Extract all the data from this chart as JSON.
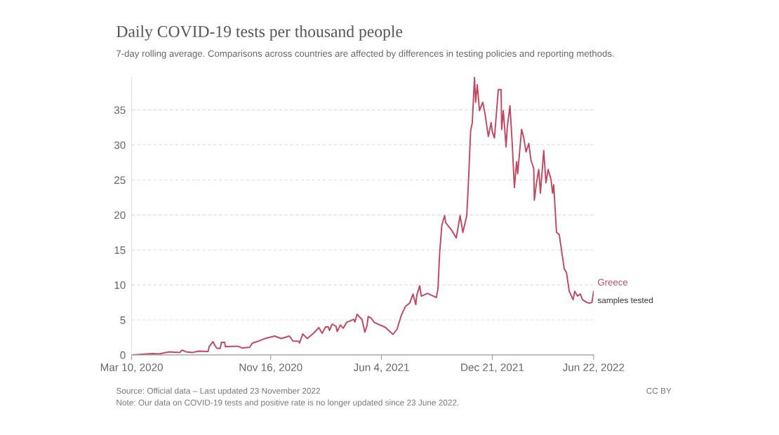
{
  "chart_data": {
    "type": "line",
    "title": "Daily COVID-19 tests per thousand people",
    "subtitle": "7-day rolling average. Comparisons across countries are affected by differences in testing policies and reporting methods.",
    "x": [
      "2020-03-10",
      "2020-04-16",
      "2020-04-28",
      "2020-05-17",
      "2020-06-05",
      "2020-06-09",
      "2020-06-16",
      "2020-06-28",
      "2020-07-09",
      "2020-07-26",
      "2020-07-28",
      "2020-08-04",
      "2020-08-07",
      "2020-08-11",
      "2020-08-17",
      "2020-08-19",
      "2020-08-25",
      "2020-08-26",
      "2020-09-18",
      "2020-09-25",
      "2020-10-09",
      "2020-10-14",
      "2020-10-26",
      "2020-11-06",
      "2020-11-23",
      "2020-12-05",
      "2020-12-20",
      "2020-12-26",
      "2021-01-06",
      "2021-01-07",
      "2021-01-13",
      "2021-01-21",
      "2021-01-31",
      "2021-02-11",
      "2021-02-17",
      "2021-02-23",
      "2021-02-28",
      "2021-03-02",
      "2021-03-07",
      "2021-03-14",
      "2021-03-16",
      "2021-03-22",
      "2021-03-27",
      "2021-04-02",
      "2021-04-15",
      "2021-04-17",
      "2021-04-21",
      "2021-04-30",
      "2021-05-05",
      "2021-05-09",
      "2021-05-11",
      "2021-05-16",
      "2021-05-22",
      "2021-06-11",
      "2021-06-21",
      "2021-06-25",
      "2021-07-02",
      "2021-07-10",
      "2021-07-17",
      "2021-07-25",
      "2021-07-31",
      "2021-08-05",
      "2021-08-07",
      "2021-08-12",
      "2021-08-15",
      "2021-08-26",
      "2021-09-06",
      "2021-09-11",
      "2021-09-14",
      "2021-09-17",
      "2021-09-21",
      "2021-09-26",
      "2021-09-28",
      "2021-10-09",
      "2021-10-17",
      "2021-10-24",
      "2021-10-29",
      "2021-11-05",
      "2021-11-08",
      "2021-11-12",
      "2021-11-15",
      "2021-11-19",
      "2021-11-21",
      "2021-11-24",
      "2021-11-28",
      "2021-12-04",
      "2021-12-08",
      "2021-12-14",
      "2021-12-19",
      "2021-12-21",
      "2021-12-25",
      "2022-01-01",
      "2022-01-06",
      "2022-01-07",
      "2022-01-10",
      "2022-01-15",
      "2022-01-17",
      "2022-01-22",
      "2022-01-26",
      "2022-01-30",
      "2022-02-03",
      "2022-02-05",
      "2022-02-08",
      "2022-02-12",
      "2022-02-16",
      "2022-02-20",
      "2022-02-25",
      "2022-03-01",
      "2022-03-06",
      "2022-03-07",
      "2022-03-11",
      "2022-03-15",
      "2022-03-18",
      "2022-03-24",
      "2022-03-28",
      "2022-04-01",
      "2022-04-06",
      "2022-04-09",
      "2022-04-11",
      "2022-04-16",
      "2022-04-21",
      "2022-04-25",
      "2022-04-30",
      "2022-05-04",
      "2022-05-09",
      "2022-05-16",
      "2022-05-19",
      "2022-05-24",
      "2022-05-29",
      "2022-06-02",
      "2022-06-10",
      "2022-06-14",
      "2022-06-19",
      "2022-06-22"
    ],
    "series": [
      {
        "name": "Greece",
        "color": "#c2475f",
        "values": [
          0,
          0.2,
          0.15,
          0.45,
          0.35,
          0.7,
          0.45,
          0.35,
          0.55,
          0.5,
          1.2,
          1.9,
          1.4,
          0.95,
          0.95,
          1.8,
          1.8,
          1.2,
          1.25,
          1.0,
          1.1,
          1.7,
          2.0,
          2.35,
          2.7,
          2.35,
          2.7,
          2.0,
          1.95,
          1.7,
          3.0,
          2.35,
          3.0,
          3.9,
          3.1,
          4.0,
          4.0,
          3.5,
          4.4,
          4.1,
          3.35,
          4.3,
          3.8,
          4.65,
          5.1,
          4.7,
          5.8,
          5.05,
          3.25,
          4.2,
          5.5,
          5.3,
          4.65,
          3.95,
          3.2,
          2.95,
          3.65,
          5.7,
          6.9,
          7.4,
          8.7,
          7.2,
          8.6,
          9.9,
          8.4,
          8.8,
          8.4,
          8.2,
          9.4,
          14.5,
          18.5,
          19.9,
          18.9,
          17.8,
          16.7,
          19.9,
          17.5,
          19.9,
          24.6,
          32.0,
          33.2,
          39.7,
          36.1,
          38.6,
          34.9,
          36.1,
          34.4,
          31.2,
          33.2,
          31.9,
          31.0,
          37.9,
          37.9,
          32.2,
          34.9,
          29.7,
          32.4,
          35.6,
          30.3,
          23.9,
          27.6,
          25.9,
          28.6,
          32.2,
          31.0,
          29.0,
          30.2,
          27.8,
          26.6,
          22.1,
          24.6,
          26.5,
          23.1,
          29.2,
          24.6,
          26.5,
          25.1,
          23.1,
          24.3,
          17.5,
          17.2,
          15.0,
          12.3,
          11.8,
          9.1,
          7.9,
          9.1,
          8.4,
          8.7,
          7.9,
          7.5,
          7.4,
          7.5,
          9.1
        ]
      }
    ],
    "xlim": [
      "2020-03-10",
      "2022-06-22"
    ],
    "xticks": [
      {
        "value": "2020-03-10",
        "label": "Mar 10, 2020"
      },
      {
        "value": "2020-11-16",
        "label": "Nov 16, 2020"
      },
      {
        "value": "2021-06-04",
        "label": "Jun 4, 2021"
      },
      {
        "value": "2021-12-21",
        "label": "Dec 21, 2021"
      },
      {
        "value": "2022-06-22",
        "label": "Jun 22, 2022"
      }
    ],
    "ylim": [
      0,
      39.7
    ],
    "yticks": [
      0,
      5,
      10,
      15,
      20,
      25,
      30,
      35
    ],
    "grid": "y",
    "legend": false,
    "marker": "none",
    "line_style": "solid",
    "annotations": [
      {
        "text": "samples tested",
        "x": "2022-06-22",
        "y": 9.1
      },
      "Source: Official data – Last updated 23 November 2022",
      "Note: Our data on COVID-19 tests and positive rate is no longer updated since 23 June 2022.",
      "CC BY"
    ]
  }
}
